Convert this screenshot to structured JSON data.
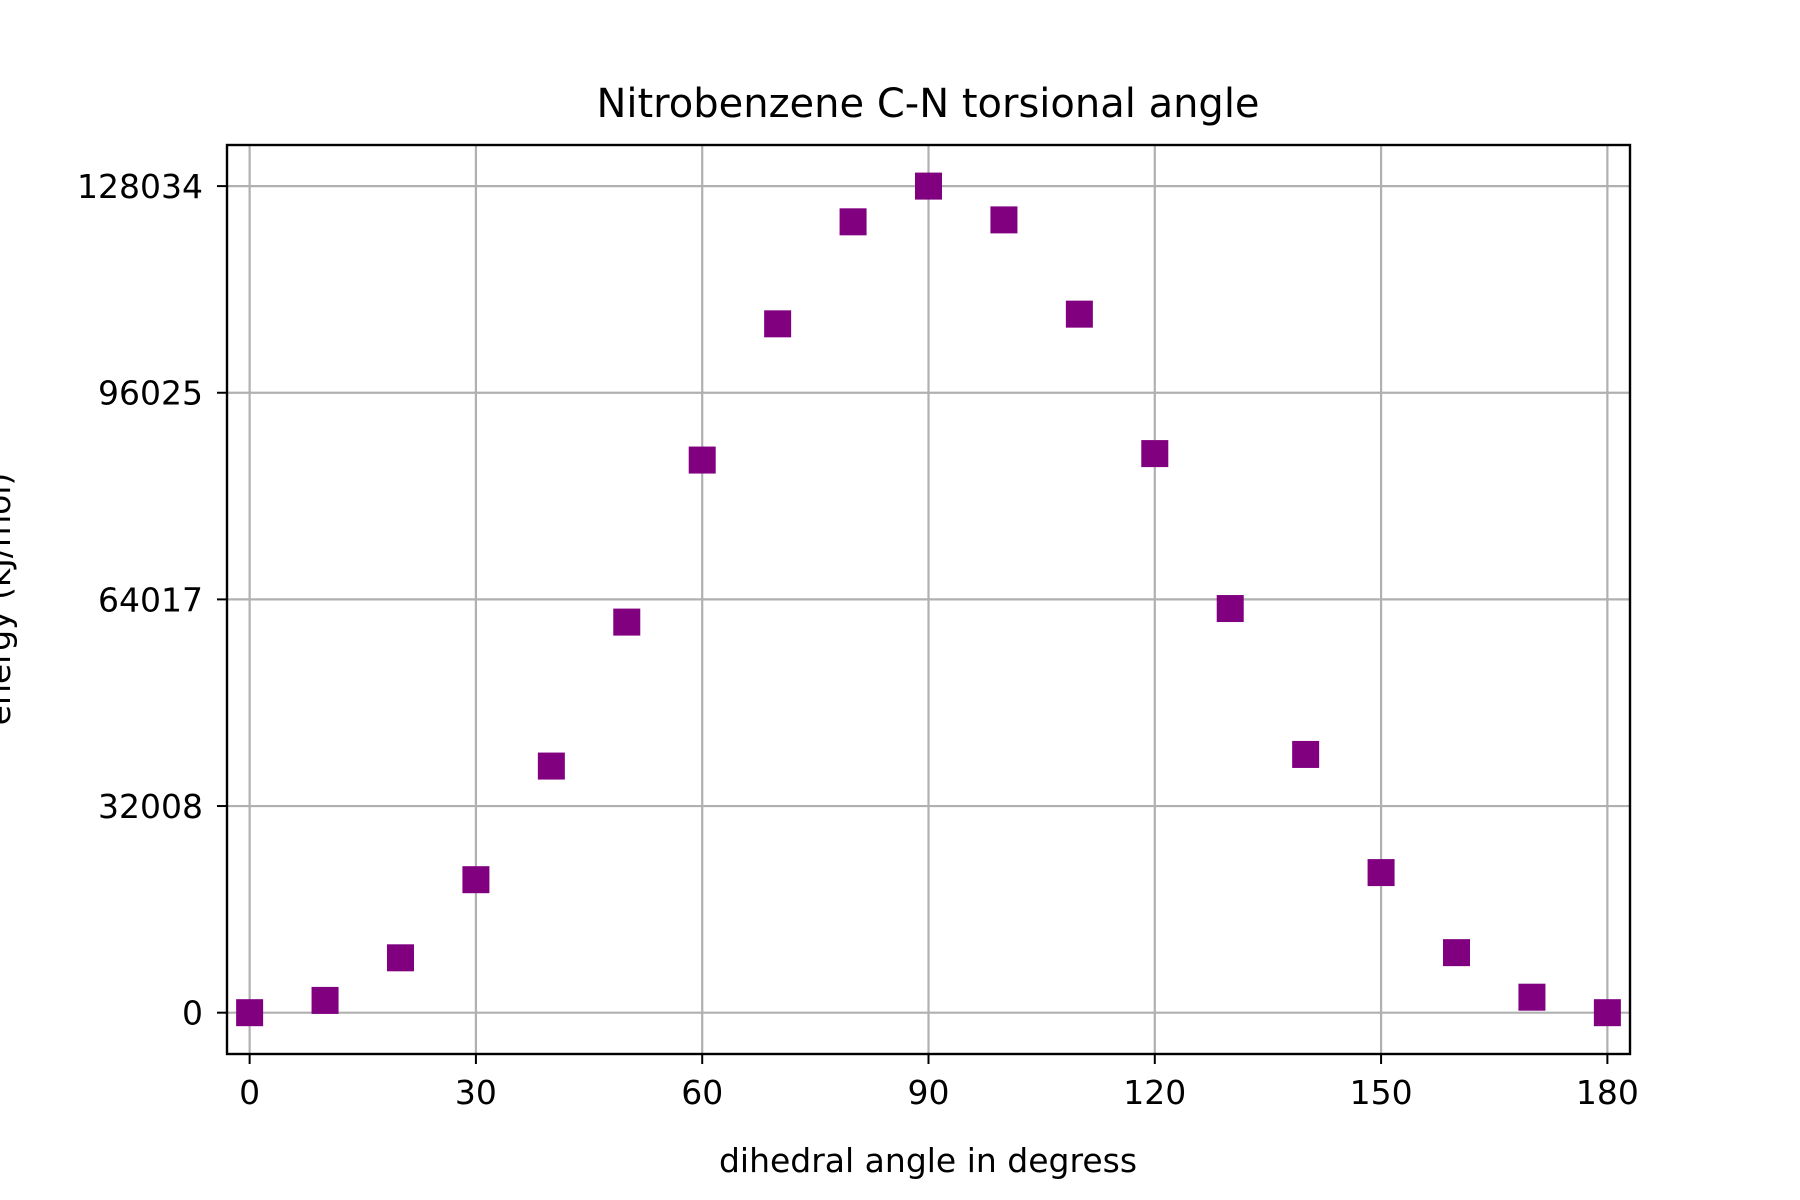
{
  "chart_data": {
    "type": "scatter",
    "title": "Nitrobenzene C-N torsional angle",
    "xlabel": "dihedral angle in degress",
    "ylabel": "energy (kJ/mol)",
    "x": [
      0,
      10,
      20,
      30,
      40,
      50,
      60,
      70,
      80,
      90,
      100,
      110,
      120,
      130,
      140,
      150,
      160,
      170,
      180
    ],
    "y": [
      0,
      1900,
      8500,
      20600,
      38200,
      60500,
      85600,
      106700,
      122500,
      128034,
      122800,
      108200,
      86600,
      62600,
      40000,
      21700,
      9300,
      2400,
      0
    ],
    "xticks": [
      "0",
      "30",
      "60",
      "90",
      "120",
      "150",
      "180"
    ],
    "xtick_values": [
      0,
      30,
      60,
      90,
      120,
      150,
      180
    ],
    "yticks": [
      "0",
      "32008",
      "64017",
      "96025",
      "128034"
    ],
    "ytick_values": [
      0,
      32008,
      64017,
      96025,
      128034
    ],
    "xlim": [
      -3,
      183
    ],
    "ylim": [
      -6400,
      134400
    ],
    "grid": true,
    "marker": "square",
    "color": "#800080"
  }
}
